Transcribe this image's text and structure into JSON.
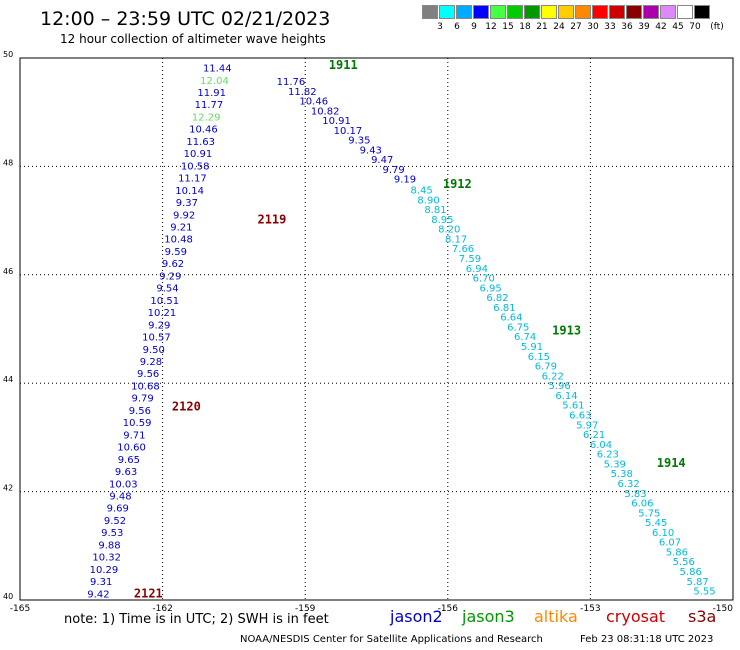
{
  "header": {
    "title": "12:00 – 23:59 UTC 02/21/2023",
    "subtitle": "12 hour collection of altimeter wave heights"
  },
  "legend": {
    "unit": "(ft)",
    "bins": [
      {
        "label": "3",
        "color": "#808080"
      },
      {
        "label": "6",
        "color": "#00ffff"
      },
      {
        "label": "9",
        "color": "#00aaff"
      },
      {
        "label": "12",
        "color": "#0000ff"
      },
      {
        "label": "15",
        "color": "#44ff44"
      },
      {
        "label": "18",
        "color": "#00cc00"
      },
      {
        "label": "21",
        "color": "#009900"
      },
      {
        "label": "24",
        "color": "#ffff00"
      },
      {
        "label": "27",
        "color": "#ffcc00"
      },
      {
        "label": "30",
        "color": "#ff8800"
      },
      {
        "label": "33",
        "color": "#ff0000"
      },
      {
        "label": "36",
        "color": "#cc0000"
      },
      {
        "label": "39",
        "color": "#880000"
      },
      {
        "label": "42",
        "color": "#aa00aa"
      },
      {
        "label": "45",
        "color": "#dd88ff"
      },
      {
        "label": "70",
        "color": "#ffffff"
      },
      {
        "label": "",
        "color": "#000000"
      }
    ]
  },
  "axes": {
    "lat_ticks": [
      "50",
      "48",
      "46",
      "44",
      "42",
      "40"
    ],
    "lon_ticks": [
      "-165",
      "-162",
      "-159",
      "-156",
      "-153",
      "-150"
    ],
    "lat_range": [
      40,
      50
    ],
    "lon_range": [
      -165,
      -150
    ]
  },
  "colors": {
    "jason2": "#0000cc",
    "jason3": "#009900",
    "altika": "#ff8800",
    "cryosat": "#cc0000",
    "s3a": "#880000",
    "track_light": "#00bbdd",
    "track_green": "#66dd66",
    "time_green": "#007700",
    "time_red": "#880000"
  },
  "map_data": {
    "tracks": [
      {
        "name": "jason2 pass 1",
        "color_key": "jason2",
        "start": {
          "lon": -160.85,
          "lat": 49.75
        },
        "end": {
          "lon": -163.35,
          "lat": 40.05
        },
        "values": [
          "11.44",
          "12.04",
          "11.91",
          "11.77",
          "12.29",
          "10.46",
          "11.63",
          "10.91",
          "10.58",
          "11.17",
          "10.14",
          "9.37",
          "9.92",
          "9.21",
          "10.48",
          "9.59",
          "9.62",
          "9.29",
          "9.54",
          "10.51",
          "10.21",
          "9.29",
          "10.57",
          "9.50",
          "9.28",
          "9.56",
          "10.68",
          "9.79",
          "9.56",
          "10.59",
          "9.71",
          "10.60",
          "9.65",
          "9.63",
          "10.03",
          "9.48",
          "9.69",
          "9.52",
          "9.53",
          "9.88",
          "10.32",
          "10.29",
          "9.31",
          "9.42"
        ],
        "value_colors": {
          "1": "#66dd66",
          "4": "#66dd66"
        }
      },
      {
        "name": "jason2 pass 2",
        "color_key": "jason2",
        "start": {
          "lon": -159.3,
          "lat": 49.5
        },
        "end": {
          "lon": -156.9,
          "lat": 47.7
        },
        "values": [
          "11.76",
          "11.82",
          "10.46",
          "10.82",
          "10.91",
          "10.17",
          "9.35",
          "9.43",
          "9.47",
          "9.79",
          "9.19"
        ]
      },
      {
        "name": "cyan pass",
        "color_key": "track_light",
        "start": {
          "lon": -156.55,
          "lat": 47.5
        },
        "end": {
          "lon": -150.6,
          "lat": 40.1
        },
        "values": [
          "8.45",
          "8.90",
          "8.81",
          "8.95",
          "8.20",
          "8.17",
          "7.66",
          "7.59",
          "6.94",
          "6.70",
          "6.95",
          "6.82",
          "6.81",
          "6.64",
          "6.75",
          "6.74",
          "5.91",
          "6.15",
          "6.79",
          "6.22",
          "5.96",
          "6.14",
          "5.61",
          "6.63",
          "5.97",
          "6.21",
          "6.04",
          "6.23",
          "5.39",
          "5.38",
          "6.32",
          "5.83",
          "6.06",
          "5.75",
          "5.45",
          "6.10",
          "6.07",
          "5.86",
          "5.56",
          "5.86",
          "5.87",
          "5.55"
        ]
      }
    ],
    "time_labels": [
      {
        "text": "1911",
        "lon": -158.2,
        "lat": 49.8,
        "color_key": "time_green"
      },
      {
        "text": "1912",
        "lon": -155.8,
        "lat": 47.6,
        "color_key": "time_green"
      },
      {
        "text": "1913",
        "lon": -153.5,
        "lat": 44.9,
        "color_key": "time_green"
      },
      {
        "text": "1914",
        "lon": -151.3,
        "lat": 42.45,
        "color_key": "time_green"
      },
      {
        "text": "2119",
        "lon": -159.7,
        "lat": 46.95,
        "color_key": "time_red"
      },
      {
        "text": "2120",
        "lon": -161.5,
        "lat": 43.5,
        "color_key": "time_red"
      },
      {
        "text": "2121",
        "lon": -162.3,
        "lat": 40.05,
        "color_key": "time_red"
      }
    ]
  },
  "footer": {
    "note": "note: 1) Time is in UTC; 2) SWH is in feet",
    "satellites": [
      {
        "label": "jason2",
        "color_key": "jason2"
      },
      {
        "label": "jason3",
        "color_key": "jason3"
      },
      {
        "label": "altika",
        "color_key": "altika"
      },
      {
        "label": "cryosat",
        "color_key": "cryosat"
      },
      {
        "label": "s3a",
        "color_key": "s3a"
      }
    ],
    "credit": "NOAA/NESDIS Center for Satellite Applications and Research",
    "timestamp": "Feb 23 08:31:18 UTC 2023"
  }
}
